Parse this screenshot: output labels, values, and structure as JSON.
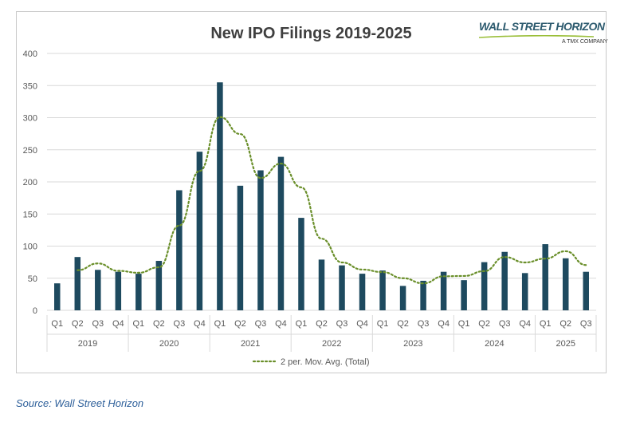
{
  "title": "New IPO Filings 2019-2025",
  "logo": {
    "main": "WALL STREET HORIZON",
    "sub": "A TMX COMPANY",
    "swoosh_color": "#9bbf3a"
  },
  "source": "Source: Wall Street Horizon",
  "colors": {
    "bar": "#1e4a5f",
    "line": "#6a8f2a",
    "grid": "#d9d9d9",
    "axis_text": "#595959"
  },
  "chart_data": {
    "type": "bar",
    "title": "New IPO Filings 2019-2025",
    "ylim": [
      0,
      400
    ],
    "yticks": [
      0,
      50,
      100,
      150,
      200,
      250,
      300,
      350,
      400
    ],
    "grid": true,
    "legend_position": "bottom",
    "categories": [
      "Q1",
      "Q2",
      "Q3",
      "Q4",
      "Q1",
      "Q2",
      "Q3",
      "Q4",
      "Q1",
      "Q2",
      "Q3",
      "Q4",
      "Q1",
      "Q2",
      "Q3",
      "Q4",
      "Q1",
      "Q2",
      "Q3",
      "Q4",
      "Q1",
      "Q2",
      "Q3",
      "Q4",
      "Q1",
      "Q2",
      "Q3"
    ],
    "year_groups": [
      {
        "label": "2019",
        "count": 4
      },
      {
        "label": "2020",
        "count": 4
      },
      {
        "label": "2021",
        "count": 4
      },
      {
        "label": "2022",
        "count": 4
      },
      {
        "label": "2023",
        "count": 4
      },
      {
        "label": "2024",
        "count": 4
      },
      {
        "label": "2025",
        "count": 3
      }
    ],
    "values": [
      42,
      83,
      63,
      60,
      57,
      77,
      187,
      247,
      355,
      194,
      218,
      239,
      144,
      79,
      70,
      57,
      62,
      38,
      46,
      60,
      47,
      75,
      91,
      58,
      103,
      81,
      60
    ],
    "trendline": {
      "name": "2 per. Mov. Avg. (Total)",
      "values": [
        null,
        62.5,
        73,
        61.5,
        58.5,
        67,
        132,
        217,
        301,
        274.5,
        206,
        228.5,
        191.5,
        111.5,
        74.5,
        63.5,
        59.5,
        50,
        42,
        53,
        53.5,
        61,
        83,
        74.5,
        80.5,
        92,
        70.5
      ]
    }
  }
}
